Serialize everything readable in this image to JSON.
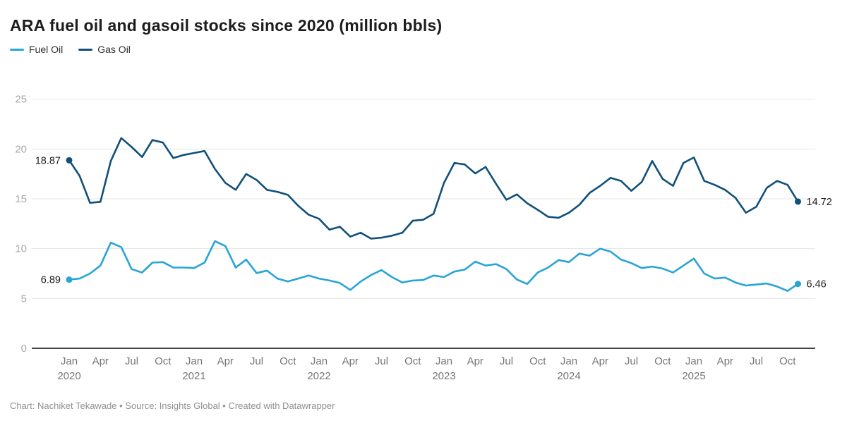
{
  "title": "ARA fuel oil and gasoil stocks since 2020 (million bbls)",
  "legend": [
    {
      "label": "Fuel Oil",
      "color": "#29a4d6"
    },
    {
      "label": "Gas Oil",
      "color": "#10507a"
    }
  ],
  "footer": "Chart: Nachiket Tekawade • Source: Insights Global • Created with Datawrapper",
  "chart_data": {
    "type": "line",
    "title": "ARA fuel oil and gasoil stocks since 2020 (million bbls)",
    "x_unit": "month",
    "x_start": "2020-01",
    "x_end": "2025-11",
    "ylim": [
      0,
      25
    ],
    "yticks": [
      0,
      5,
      10,
      15,
      20,
      25
    ],
    "grid": true,
    "legend_position": "top-left",
    "x_ticks": [
      {
        "i": 0,
        "label": "Jan",
        "year": "2020"
      },
      {
        "i": 3,
        "label": "Apr"
      },
      {
        "i": 6,
        "label": "Jul"
      },
      {
        "i": 9,
        "label": "Oct"
      },
      {
        "i": 12,
        "label": "Jan",
        "year": "2021"
      },
      {
        "i": 15,
        "label": "Apr"
      },
      {
        "i": 18,
        "label": "Jul"
      },
      {
        "i": 21,
        "label": "Oct"
      },
      {
        "i": 24,
        "label": "Jan",
        "year": "2022"
      },
      {
        "i": 27,
        "label": "Apr"
      },
      {
        "i": 30,
        "label": "Jul"
      },
      {
        "i": 33,
        "label": "Oct"
      },
      {
        "i": 36,
        "label": "Jan",
        "year": "2023"
      },
      {
        "i": 39,
        "label": "Apr"
      },
      {
        "i": 42,
        "label": "Jul"
      },
      {
        "i": 45,
        "label": "Oct"
      },
      {
        "i": 48,
        "label": "Jan",
        "year": "2024"
      },
      {
        "i": 51,
        "label": "Apr"
      },
      {
        "i": 54,
        "label": "Jul"
      },
      {
        "i": 57,
        "label": "Oct"
      },
      {
        "i": 60,
        "label": "Jan",
        "year": "2025"
      },
      {
        "i": 63,
        "label": "Apr"
      },
      {
        "i": 66,
        "label": "Jul"
      },
      {
        "i": 69,
        "label": "Oct"
      }
    ],
    "series": [
      {
        "name": "Fuel Oil",
        "color": "#29a4d6",
        "start_label": "6.89",
        "end_label": "6.46",
        "values": [
          6.89,
          7.0,
          7.5,
          8.3,
          10.6,
          10.15,
          7.95,
          7.6,
          8.6,
          8.65,
          8.1,
          8.1,
          8.05,
          8.6,
          10.75,
          10.25,
          8.1,
          8.9,
          7.55,
          7.8,
          7.0,
          6.7,
          7.0,
          7.3,
          7.0,
          6.8,
          6.55,
          5.85,
          6.7,
          7.35,
          7.85,
          7.15,
          6.6,
          6.8,
          6.85,
          7.3,
          7.15,
          7.7,
          7.9,
          8.7,
          8.3,
          8.45,
          7.95,
          6.9,
          6.45,
          7.6,
          8.1,
          8.85,
          8.65,
          9.5,
          9.3,
          10.0,
          9.7,
          8.9,
          8.55,
          8.05,
          8.2,
          8.0,
          7.6,
          8.3,
          9.0,
          7.5,
          7.0,
          7.1,
          6.6,
          6.3,
          6.4,
          6.5,
          6.2,
          5.75,
          6.46
        ]
      },
      {
        "name": "Gas Oil",
        "color": "#10507a",
        "start_label": "18.87",
        "end_label": "14.72",
        "values": [
          18.87,
          17.3,
          14.6,
          14.7,
          18.8,
          21.1,
          20.2,
          19.2,
          20.9,
          20.65,
          19.1,
          19.4,
          19.6,
          19.8,
          18.0,
          16.6,
          15.9,
          17.5,
          16.9,
          15.9,
          15.7,
          15.4,
          14.3,
          13.4,
          13.0,
          11.9,
          12.2,
          11.2,
          11.6,
          11.0,
          11.1,
          11.3,
          11.6,
          12.8,
          12.9,
          13.5,
          16.6,
          18.6,
          18.45,
          17.55,
          18.2,
          16.5,
          14.9,
          15.45,
          14.55,
          13.9,
          13.2,
          13.1,
          13.6,
          14.4,
          15.6,
          16.3,
          17.1,
          16.8,
          15.8,
          16.7,
          18.8,
          17.0,
          16.3,
          18.6,
          19.15,
          16.8,
          16.4,
          15.9,
          15.1,
          13.6,
          14.2,
          16.1,
          16.8,
          16.4,
          14.72
        ]
      }
    ]
  }
}
